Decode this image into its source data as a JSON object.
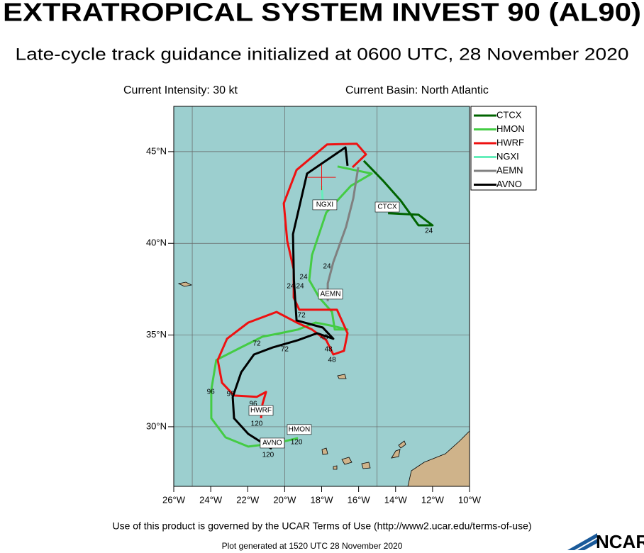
{
  "chart_data": {
    "type": "track",
    "title": "EXTRATROPICAL SYSTEM INVEST 90 (AL90)",
    "subtitle": "Late-cycle track guidance initialized at 0600 UTC, 28 November 2020",
    "intensity": "Current Intensity: 30 kt",
    "basin": "Current Basin: North Atlantic",
    "footer": "Use of this product is governed by the UCAR Terms of Use (http://www2.ucar.edu/terms-of-use)",
    "generated": "Plot generated at 1520 UTC   28 November 2020",
    "logo": "NCAR",
    "xlim": [
      -26,
      -10
    ],
    "ylim": [
      26.75,
      47.47
    ],
    "xticks": [
      {
        "value": -26,
        "label": "26°W"
      },
      {
        "value": -24,
        "label": "24°W"
      },
      {
        "value": -22,
        "label": "22°W"
      },
      {
        "value": -20,
        "label": "20°W"
      },
      {
        "value": -18,
        "label": "18°W"
      },
      {
        "value": -16,
        "label": "16°W"
      },
      {
        "value": -14,
        "label": "14°W"
      },
      {
        "value": -12,
        "label": "12°W"
      },
      {
        "value": -10,
        "label": "10°W"
      }
    ],
    "yticks": [
      {
        "value": 30,
        "label": "30°N"
      },
      {
        "value": 35,
        "label": "35°N"
      },
      {
        "value": 40,
        "label": "40°N"
      },
      {
        "value": 45,
        "label": "45°N"
      }
    ],
    "xgrid": [
      -25,
      -20,
      -15
    ],
    "grid": true,
    "current_position": {
      "lon": -18,
      "lat": 43.6,
      "color": "#ee1111"
    },
    "series": [
      {
        "name": "CTCX",
        "color": "#006400",
        "lon": [
          -15.72,
          -14.68,
          -13.72,
          -12.76,
          -12,
          -12.76,
          -14.41
        ],
        "lat": [
          44.5,
          43.42,
          42.33,
          40.98,
          40.98,
          41.56,
          41.64
        ]
      },
      {
        "name": "HMON",
        "color": "#44cc44",
        "lon": [
          -17.14,
          -15.29,
          -16.41,
          -17.75,
          -18.52,
          -18.67,
          -18.13,
          -17.44,
          -17.29,
          -16.6,
          -17.37,
          -18.33,
          -19.28,
          -20.24,
          -21.2,
          -22.35,
          -23.7,
          -23.97,
          -23.97,
          -23.2,
          -21.97,
          -20.44,
          -19.28
        ],
        "lat": [
          44.19,
          43.8,
          43.14,
          41.68,
          39.36,
          38.0,
          37.04,
          36.26,
          35.3,
          35.3,
          35.49,
          35.68,
          35.3,
          35.1,
          34.91,
          34.33,
          33.64,
          32.01,
          30.47,
          29.42,
          28.92,
          29.11,
          29.38
        ]
      },
      {
        "name": "HWRF",
        "color": "#ee1111",
        "lon": [
          -16.33,
          -15.6,
          -16.1,
          -17.71,
          -19.36,
          -20.05,
          -19.86,
          -19.51,
          -19.51,
          -19.21,
          -17.17,
          -16.6,
          -16.79,
          -17.37,
          -17.75,
          -18.52,
          -19.28,
          -20.44,
          -21.97,
          -23.12,
          -23.62,
          -23.39,
          -22.74,
          -21.51,
          -21.01,
          -21.2,
          -21.28
        ],
        "lat": [
          44.15,
          44.85,
          45.43,
          45.39,
          44.0,
          42.18,
          40.13,
          38.58,
          37.04,
          36.38,
          36.38,
          35.1,
          34.14,
          33.94,
          34.72,
          35.3,
          35.65,
          36.26,
          35.68,
          34.8,
          33.64,
          32.4,
          31.7,
          31.63,
          31.9,
          31.24,
          30.47
        ]
      },
      {
        "name": "NGXI",
        "color": "#66eebb",
        "lon": [
          -18,
          -17.9
        ],
        "lat": [
          43.14,
          41.79
        ]
      },
      {
        "name": "AEMN",
        "color": "#808080",
        "lon": [
          -16.02,
          -16.29,
          -16.68,
          -17.37,
          -17.67,
          -17.67
        ],
        "lat": [
          44.15,
          42.45,
          40.9,
          38.97,
          37.81,
          36.84
        ]
      },
      {
        "name": "AVNO",
        "color": "#000000",
        "lon": [
          -16.6,
          -16.71,
          -18.79,
          -19.55,
          -19.5,
          -19.36,
          -17.94,
          -17.37,
          -18.25,
          -19.28,
          -20.63,
          -21.66,
          -22.35,
          -22.81,
          -22.74,
          -21.97,
          -20.7
        ],
        "lat": [
          44.23,
          45.23,
          43.8,
          40.5,
          38.0,
          35.8,
          35.41,
          34.8,
          35.1,
          34.72,
          34.33,
          33.94,
          32.97,
          31.62,
          30.46,
          29.61,
          28.8
        ]
      }
    ],
    "hour_labels": [
      {
        "text": "24",
        "lon": -12.2,
        "lat": 40.67
      },
      {
        "text": "24",
        "lon": -17.71,
        "lat": 38.74
      },
      {
        "text": "24",
        "lon": -18.98,
        "lat": 38.15
      },
      {
        "text": "24",
        "lon": -19.67,
        "lat": 37.65
      },
      {
        "text": "24",
        "lon": -19.17,
        "lat": 37.65
      },
      {
        "text": "72",
        "lon": -19.09,
        "lat": 36.07
      },
      {
        "text": "48",
        "lon": -17.87,
        "lat": 34.87
      },
      {
        "text": "48",
        "lon": -17.63,
        "lat": 34.21
      },
      {
        "text": "48",
        "lon": -17.44,
        "lat": 33.64
      },
      {
        "text": "72",
        "lon": -21.51,
        "lat": 34.52
      },
      {
        "text": "72",
        "lon": -20.0,
        "lat": 34.21
      },
      {
        "text": "96",
        "lon": -24.0,
        "lat": 31.9
      },
      {
        "text": "96",
        "lon": -22.93,
        "lat": 31.78
      },
      {
        "text": "96",
        "lon": -21.7,
        "lat": 31.24
      },
      {
        "text": "120",
        "lon": -21.51,
        "lat": 30.16
      },
      {
        "text": "120",
        "lon": -19.36,
        "lat": 29.15
      },
      {
        "text": "120",
        "lon": -20.9,
        "lat": 28.46
      }
    ],
    "model_labels": [
      {
        "text": "NGXI",
        "lon": -17.83,
        "lat": 42.1
      },
      {
        "text": "CTCX",
        "lon": -14.45,
        "lat": 41.98
      },
      {
        "text": "AEMN",
        "lon": -17.52,
        "lat": 37.23
      },
      {
        "text": "HWRF",
        "lon": -21.28,
        "lat": 30.89
      },
      {
        "text": "HMON",
        "lon": -19.21,
        "lat": 29.85
      },
      {
        "text": "AVNO",
        "lon": -20.67,
        "lat": 29.11
      }
    ]
  }
}
